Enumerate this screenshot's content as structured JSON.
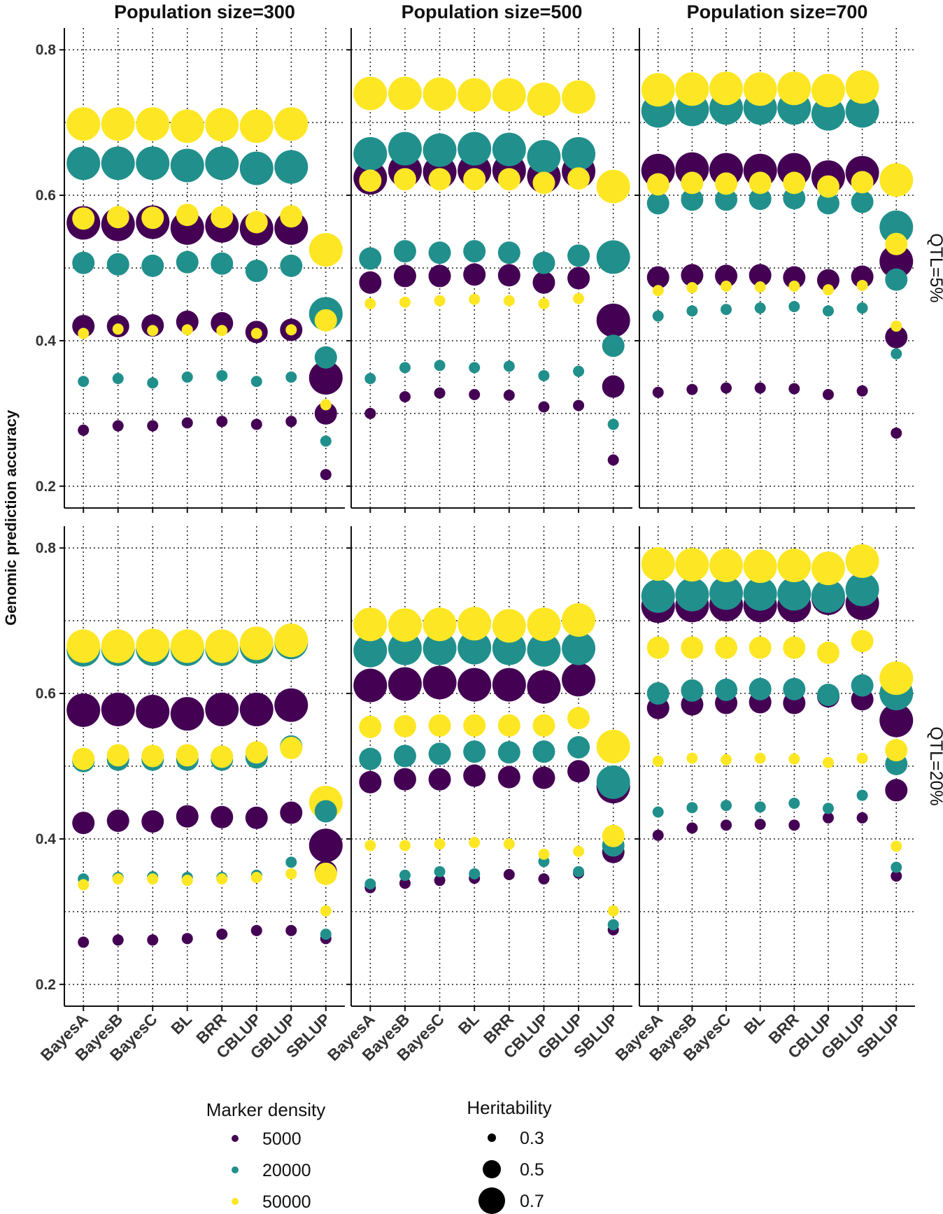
{
  "chart_data": {
    "type": "scatter",
    "ylabel": "Genomic prediction accuracy",
    "xlabel": "",
    "ylim": [
      0.17,
      0.83
    ],
    "yticks": [
      0.2,
      0.4,
      0.6,
      0.8
    ],
    "ytick_labels": [
      "0.2",
      "0.4",
      "0.6",
      "0.8"
    ],
    "grid": true,
    "categories": [
      "BayesA",
      "BayesB",
      "BayesC",
      "BL",
      "BRR",
      "CBLUP",
      "GBLUP",
      "SBLUP"
    ],
    "column_facets": [
      "Population size=300",
      "Population size=500",
      "Population size=700"
    ],
    "row_facets": [
      "QTL=5%",
      "QTL=20%"
    ],
    "color_legend": {
      "title": "Marker density",
      "position": "bottom",
      "items": [
        {
          "label": "5000",
          "color": "#440154"
        },
        {
          "label": "20000",
          "color": "#21908C"
        },
        {
          "label": "50000",
          "color": "#FDE725"
        }
      ]
    },
    "size_legend": {
      "title": "Heritability",
      "position": "bottom",
      "items": [
        {
          "label": "0.3",
          "value": 0.3
        },
        {
          "label": "0.5",
          "value": 0.5
        },
        {
          "label": "0.7",
          "value": 0.7
        }
      ]
    },
    "panels": [
      {
        "column": 0,
        "row": 0,
        "series": [
          {
            "density": "5000",
            "h2": 0.3,
            "values": [
              0.277,
              0.283,
              0.283,
              0.287,
              0.289,
              0.285,
              0.289,
              0.216
            ]
          },
          {
            "density": "5000",
            "h2": 0.5,
            "values": [
              0.42,
              0.42,
              0.421,
              0.426,
              0.424,
              0.412,
              0.415,
              0.3
            ]
          },
          {
            "density": "5000",
            "h2": 0.7,
            "values": [
              0.562,
              0.56,
              0.563,
              0.555,
              0.558,
              0.554,
              0.555,
              0.349
            ]
          },
          {
            "density": "20000",
            "h2": 0.3,
            "values": [
              0.344,
              0.348,
              0.342,
              0.35,
              0.352,
              0.344,
              0.35,
              0.262
            ]
          },
          {
            "density": "20000",
            "h2": 0.5,
            "values": [
              0.507,
              0.505,
              0.503,
              0.508,
              0.506,
              0.496,
              0.503,
              0.377
            ]
          },
          {
            "density": "20000",
            "h2": 0.7,
            "values": [
              0.644,
              0.644,
              0.644,
              0.641,
              0.644,
              0.637,
              0.639,
              0.437
            ]
          },
          {
            "density": "50000",
            "h2": 0.3,
            "values": [
              0.41,
              0.416,
              0.414,
              0.415,
              0.414,
              0.41,
              0.415,
              0.312
            ]
          },
          {
            "density": "50000",
            "h2": 0.5,
            "values": [
              0.568,
              0.57,
              0.569,
              0.573,
              0.57,
              0.563,
              0.571,
              0.428
            ]
          },
          {
            "density": "50000",
            "h2": 0.7,
            "values": [
              0.698,
              0.698,
              0.698,
              0.695,
              0.697,
              0.695,
              0.698,
              0.525
            ]
          }
        ]
      },
      {
        "column": 1,
        "row": 0,
        "series": [
          {
            "density": "5000",
            "h2": 0.3,
            "values": [
              0.3,
              0.323,
              0.328,
              0.326,
              0.325,
              0.309,
              0.311,
              0.236
            ]
          },
          {
            "density": "5000",
            "h2": 0.5,
            "values": [
              0.48,
              0.489,
              0.489,
              0.491,
              0.49,
              0.48,
              0.486,
              0.337
            ]
          },
          {
            "density": "5000",
            "h2": 0.7,
            "values": [
              0.624,
              0.634,
              0.632,
              0.634,
              0.634,
              0.626,
              0.633,
              0.428
            ]
          },
          {
            "density": "20000",
            "h2": 0.3,
            "values": [
              0.348,
              0.363,
              0.366,
              0.363,
              0.365,
              0.352,
              0.358,
              0.285
            ]
          },
          {
            "density": "20000",
            "h2": 0.5,
            "values": [
              0.513,
              0.523,
              0.521,
              0.523,
              0.521,
              0.507,
              0.517,
              0.393
            ]
          },
          {
            "density": "20000",
            "h2": 0.7,
            "values": [
              0.657,
              0.664,
              0.662,
              0.664,
              0.663,
              0.653,
              0.657,
              0.515
            ]
          },
          {
            "density": "50000",
            "h2": 0.3,
            "values": [
              0.451,
              0.453,
              0.455,
              0.457,
              0.455,
              0.451,
              0.458,
              null
            ]
          },
          {
            "density": "50000",
            "h2": 0.5,
            "values": [
              0.62,
              0.622,
              0.622,
              0.622,
              0.622,
              0.617,
              0.623,
              null
            ]
          },
          {
            "density": "50000",
            "h2": 0.7,
            "values": [
              0.74,
              0.74,
              0.739,
              0.738,
              0.738,
              0.732,
              0.735,
              0.612
            ]
          }
        ]
      },
      {
        "column": 2,
        "row": 0,
        "series": [
          {
            "density": "5000",
            "h2": 0.3,
            "values": [
              0.329,
              0.333,
              0.335,
              0.335,
              0.334,
              0.326,
              0.331,
              0.273
            ]
          },
          {
            "density": "5000",
            "h2": 0.5,
            "values": [
              0.487,
              0.49,
              0.489,
              0.49,
              0.487,
              0.483,
              0.488,
              0.405
            ]
          },
          {
            "density": "5000",
            "h2": 0.7,
            "values": [
              0.634,
              0.636,
              0.635,
              0.634,
              0.635,
              0.625,
              0.631,
              0.509
            ]
          },
          {
            "density": "20000",
            "h2": 0.3,
            "values": [
              0.434,
              0.441,
              0.443,
              0.445,
              0.447,
              0.441,
              0.445,
              0.382
            ]
          },
          {
            "density": "20000",
            "h2": 0.5,
            "values": [
              0.589,
              0.594,
              0.594,
              0.595,
              0.596,
              0.589,
              0.591,
              0.484
            ]
          },
          {
            "density": "20000",
            "h2": 0.7,
            "values": [
              0.716,
              0.718,
              0.72,
              0.72,
              0.72,
              0.712,
              0.716,
              0.556
            ]
          },
          {
            "density": "50000",
            "h2": 0.3,
            "values": [
              0.469,
              0.473,
              0.475,
              0.474,
              0.475,
              0.47,
              0.476,
              0.42
            ]
          },
          {
            "density": "50000",
            "h2": 0.5,
            "values": [
              0.615,
              0.617,
              0.616,
              0.617,
              0.617,
              0.612,
              0.618,
              0.533
            ]
          },
          {
            "density": "50000",
            "h2": 0.7,
            "values": [
              0.745,
              0.746,
              0.747,
              0.746,
              0.747,
              0.744,
              0.749,
              0.621
            ]
          }
        ]
      },
      {
        "column": 0,
        "row": 1,
        "series": [
          {
            "density": "5000",
            "h2": 0.3,
            "values": [
              0.258,
              0.261,
              0.261,
              0.263,
              0.269,
              0.274,
              0.274,
              0.263
            ]
          },
          {
            "density": "5000",
            "h2": 0.5,
            "values": [
              0.422,
              0.425,
              0.424,
              0.431,
              0.43,
              0.429,
              0.436,
              0.355
            ]
          },
          {
            "density": "5000",
            "h2": 0.7,
            "values": [
              0.577,
              0.578,
              0.575,
              0.572,
              0.578,
              0.578,
              0.584,
              0.391
            ]
          },
          {
            "density": "20000",
            "h2": 0.3,
            "values": [
              0.345,
              0.347,
              0.348,
              0.347,
              0.347,
              0.35,
              0.368,
              0.269
            ]
          },
          {
            "density": "20000",
            "h2": 0.5,
            "values": [
              0.507,
              0.509,
              0.509,
              0.509,
              0.509,
              0.512,
              0.527,
              0.438
            ]
          },
          {
            "density": "20000",
            "h2": 0.7,
            "values": [
              0.66,
              0.661,
              0.661,
              0.661,
              0.661,
              0.664,
              0.67,
              null
            ]
          },
          {
            "density": "50000",
            "h2": 0.3,
            "values": [
              0.337,
              0.345,
              0.345,
              0.343,
              0.345,
              0.347,
              0.352,
              0.301
            ]
          },
          {
            "density": "50000",
            "h2": 0.5,
            "values": [
              0.51,
              0.515,
              0.514,
              0.515,
              0.513,
              0.519,
              0.525,
              0.352
            ]
          },
          {
            "density": "50000",
            "h2": 0.7,
            "values": [
              0.665,
              0.665,
              0.666,
              0.665,
              0.665,
              0.669,
              0.673,
              0.45
            ]
          }
        ]
      },
      {
        "column": 1,
        "row": 1,
        "series": [
          {
            "density": "5000",
            "h2": 0.3,
            "values": [
              0.333,
              0.339,
              0.343,
              0.346,
              0.351,
              0.345,
              0.353,
              0.275
            ]
          },
          {
            "density": "5000",
            "h2": 0.5,
            "values": [
              0.478,
              0.482,
              0.482,
              0.487,
              0.485,
              0.484,
              0.493,
              0.382
            ]
          },
          {
            "density": "5000",
            "h2": 0.7,
            "values": [
              0.611,
              0.613,
              0.615,
              0.612,
              0.612,
              0.609,
              0.619,
              0.472
            ]
          },
          {
            "density": "20000",
            "h2": 0.3,
            "values": [
              0.338,
              0.35,
              0.355,
              0.352,
              null,
              0.369,
              0.355,
              0.282
            ]
          },
          {
            "density": "20000",
            "h2": 0.5,
            "values": [
              0.51,
              0.514,
              0.517,
              0.52,
              0.519,
              0.52,
              0.526,
              0.391
            ]
          },
          {
            "density": "20000",
            "h2": 0.7,
            "values": [
              0.659,
              0.662,
              0.662,
              0.663,
              0.662,
              0.66,
              0.662,
              0.478
            ]
          },
          {
            "density": "50000",
            "h2": 0.3,
            "values": [
              0.391,
              0.391,
              0.393,
              0.395,
              0.393,
              0.379,
              0.383,
              0.301
            ]
          },
          {
            "density": "50000",
            "h2": 0.5,
            "values": [
              0.554,
              0.555,
              0.556,
              0.556,
              0.556,
              0.556,
              0.566,
              0.404
            ]
          },
          {
            "density": "50000",
            "h2": 0.7,
            "values": [
              0.695,
              0.694,
              0.695,
              0.696,
              0.693,
              0.695,
              0.701,
              0.527
            ]
          }
        ]
      },
      {
        "column": 2,
        "row": 1,
        "series": [
          {
            "density": "5000",
            "h2": 0.3,
            "values": [
              0.405,
              0.415,
              0.419,
              0.42,
              0.419,
              0.429,
              0.429,
              0.349
            ]
          },
          {
            "density": "5000",
            "h2": 0.5,
            "values": [
              0.58,
              0.585,
              0.587,
              0.588,
              0.587,
              0.596,
              0.592,
              0.467
            ]
          },
          {
            "density": "5000",
            "h2": 0.7,
            "values": [
              0.72,
              0.721,
              0.722,
              0.721,
              0.721,
              0.731,
              0.724,
              0.563
            ]
          },
          {
            "density": "20000",
            "h2": 0.3,
            "values": [
              0.437,
              0.443,
              0.446,
              0.444,
              0.449,
              0.442,
              0.46,
              0.361
            ]
          },
          {
            "density": "20000",
            "h2": 0.5,
            "values": [
              0.6,
              0.604,
              0.605,
              0.606,
              0.606,
              0.598,
              0.611,
              0.503
            ]
          },
          {
            "density": "20000",
            "h2": 0.7,
            "values": [
              0.734,
              0.736,
              0.738,
              0.737,
              0.737,
              0.734,
              0.743,
              0.6
            ]
          },
          {
            "density": "50000",
            "h2": 0.3,
            "values": [
              0.507,
              0.511,
              0.509,
              0.511,
              0.51,
              0.505,
              0.511,
              0.39
            ]
          },
          {
            "density": "50000",
            "h2": 0.5,
            "values": [
              0.663,
              0.663,
              0.663,
              0.663,
              0.663,
              0.656,
              0.672,
              0.522
            ]
          },
          {
            "density": "50000",
            "h2": 0.7,
            "values": [
              0.778,
              0.777,
              0.776,
              0.775,
              0.776,
              0.772,
              0.782,
              0.621
            ]
          }
        ]
      }
    ]
  }
}
